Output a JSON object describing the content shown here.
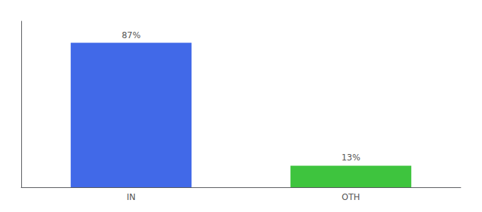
{
  "chart_data": {
    "type": "bar",
    "categories": [
      "IN",
      "OTH"
    ],
    "values": [
      87,
      13
    ],
    "value_labels": [
      "87%",
      "13%"
    ],
    "colors": [
      "#4169e8",
      "#3ec43e"
    ],
    "ylim": [
      0,
      100
    ],
    "data_labels": true,
    "tick_labels": "x",
    "grid": false
  }
}
